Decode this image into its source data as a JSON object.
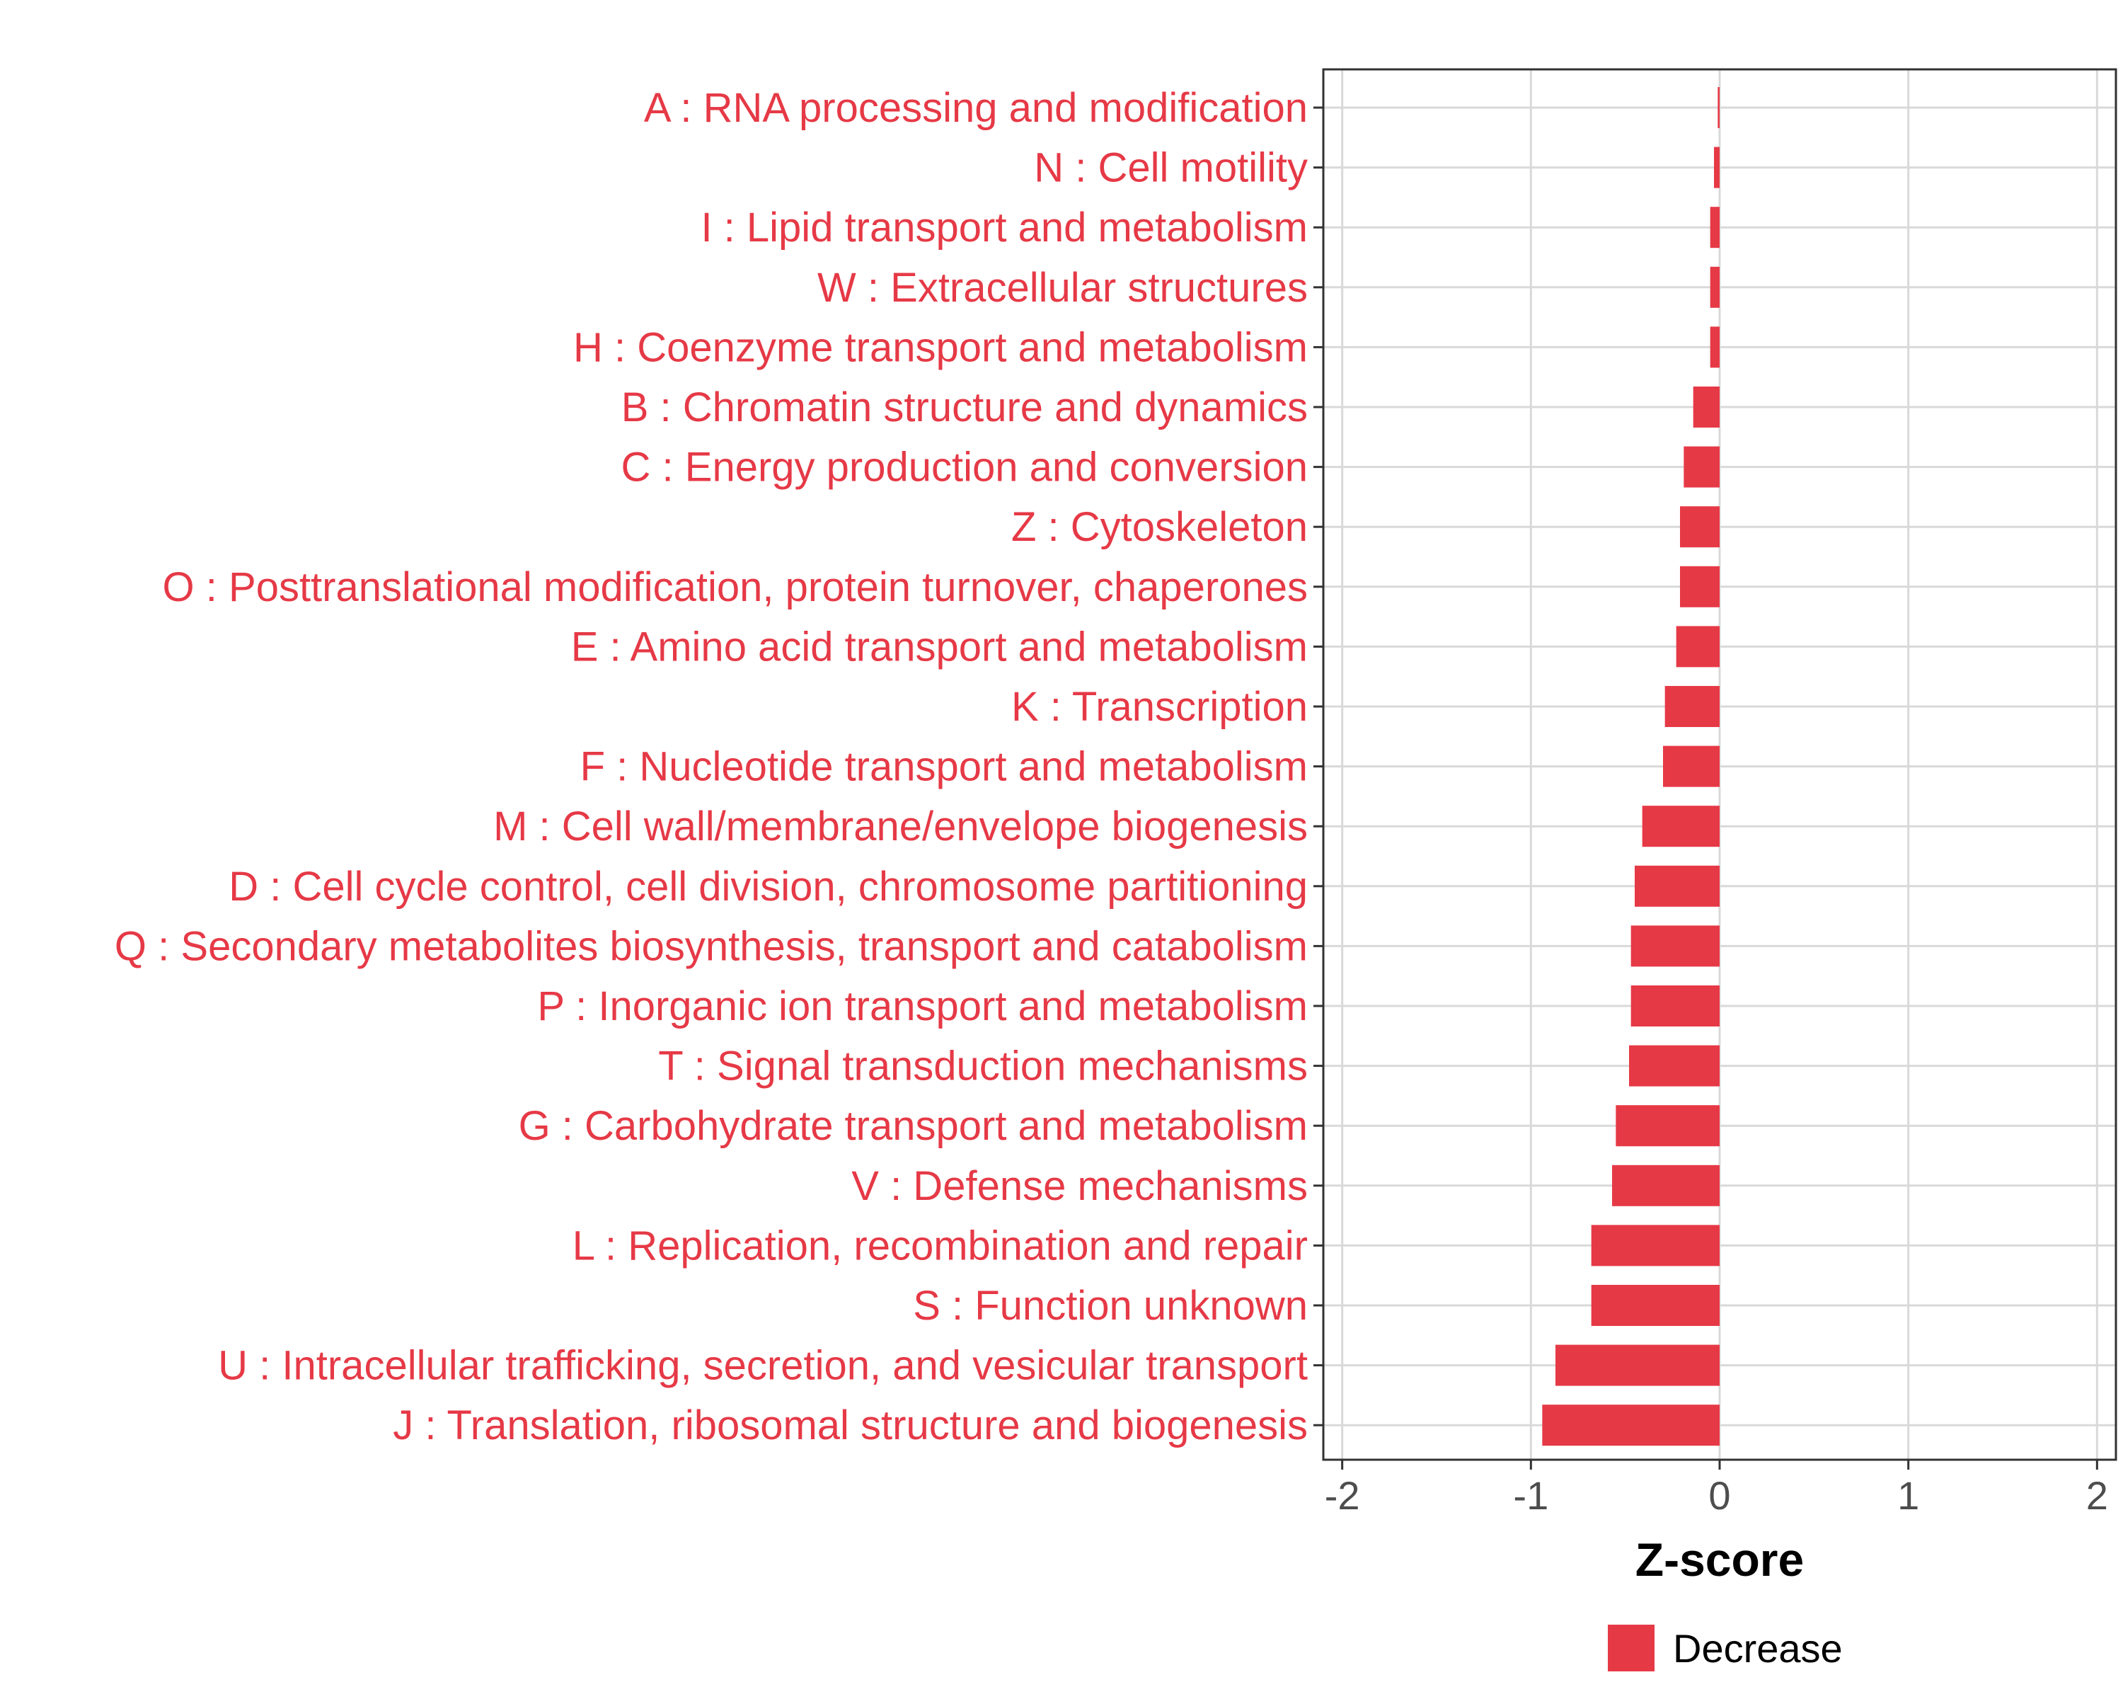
{
  "chart_data": {
    "type": "bar",
    "orientation": "horizontal",
    "categories": [
      "A : RNA processing and modification",
      "N : Cell motility",
      "I : Lipid transport and metabolism",
      "W : Extracellular structures",
      "H : Coenzyme transport and metabolism",
      "B : Chromatin structure and dynamics",
      "C : Energy production and conversion",
      "Z : Cytoskeleton",
      "O : Posttranslational modification, protein turnover, chaperones",
      "E : Amino acid transport and metabolism",
      "K : Transcription",
      "F : Nucleotide transport and metabolism",
      "M : Cell wall/membrane/envelope biogenesis",
      "D : Cell cycle control, cell division, chromosome partitioning",
      "Q : Secondary metabolites biosynthesis, transport and catabolism",
      "P : Inorganic ion transport and metabolism",
      "T : Signal transduction mechanisms",
      "G : Carbohydrate transport and metabolism",
      "V : Defense mechanisms",
      "L : Replication, recombination and repair",
      "S : Function unknown",
      "U : Intracellular trafficking, secretion, and vesicular transport",
      "J : Translation, ribosomal structure and biogenesis"
    ],
    "values": [
      -0.01,
      -0.03,
      -0.05,
      -0.05,
      -0.05,
      -0.14,
      -0.19,
      -0.21,
      -0.21,
      -0.23,
      -0.29,
      -0.3,
      -0.41,
      -0.45,
      -0.47,
      -0.47,
      -0.48,
      -0.55,
      -0.57,
      -0.68,
      -0.68,
      -0.87,
      -0.94
    ],
    "series": [
      {
        "name": "Decrease",
        "color": "#E63946"
      }
    ],
    "xlabel": "Z-score",
    "ylabel": "",
    "xlim": [
      -2.1,
      2.1
    ],
    "xticks": [
      -2,
      -1,
      0,
      1,
      2
    ],
    "xtick_labels": [
      "-2",
      "-1",
      "0",
      "1",
      "2"
    ],
    "grid": true,
    "legend": {
      "position": "bottom",
      "entries": [
        "Decrease"
      ]
    }
  },
  "colors": {
    "bar": "#E63946",
    "label": "#E63946",
    "grid": "#d9d9d9",
    "panel_border": "#333333"
  }
}
